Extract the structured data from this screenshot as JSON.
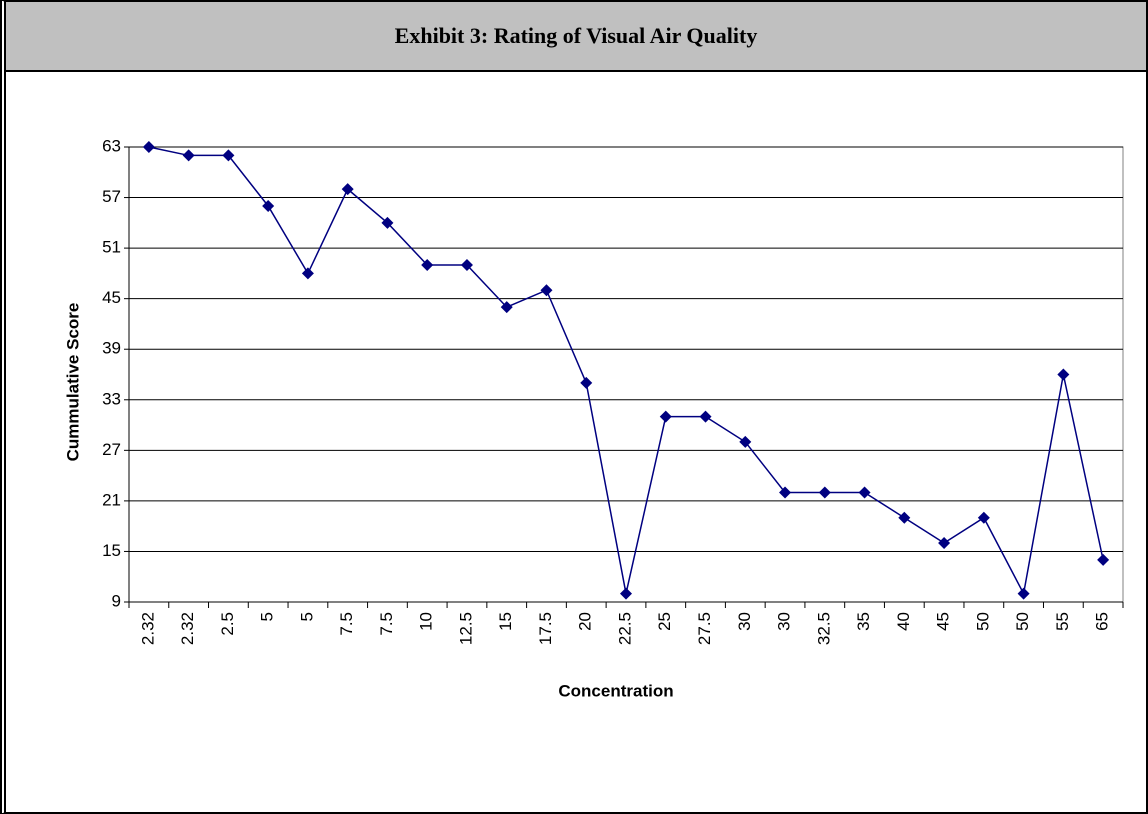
{
  "chart_data": {
    "type": "line",
    "title": "Exhibit 3: Rating of Visual Air Quality",
    "x_label": "Concentration",
    "y_label": "Cummulative Score",
    "categories": [
      "2.32",
      "2.32",
      "2.5",
      "5",
      "5",
      "7.5",
      "7.5",
      "10",
      "12.5",
      "15",
      "17.5",
      "20",
      "22.5",
      "25",
      "27.5",
      "30",
      "30",
      "32.5",
      "35",
      "40",
      "45",
      "50",
      "50",
      "55",
      "65"
    ],
    "series": [
      {
        "color": "#000080",
        "values": [
          63,
          62,
          62,
          56,
          48,
          58,
          54,
          49,
          49,
          44,
          46,
          35,
          10,
          31,
          31,
          28,
          22,
          22,
          22,
          19,
          16,
          19,
          10,
          36,
          14
        ]
      }
    ],
    "ylim": [
      9,
      63
    ],
    "yticks": [
      9,
      15,
      21,
      27,
      33,
      39,
      45,
      51,
      57,
      63
    ],
    "grid": true
  }
}
